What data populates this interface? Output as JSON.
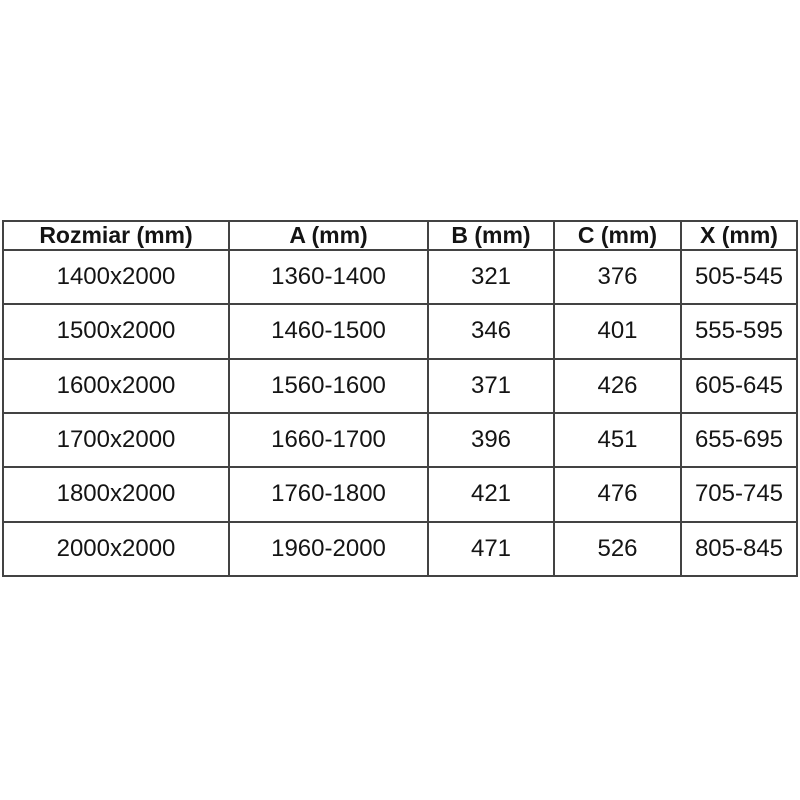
{
  "chart_data": {
    "type": "table",
    "title": "",
    "columns": [
      "Rozmiar (mm)",
      "A (mm)",
      "B (mm)",
      "C (mm)",
      "X (mm)"
    ],
    "rows": [
      [
        "1400x2000",
        "1360-1400",
        "321",
        "376",
        "505-545"
      ],
      [
        "1500x2000",
        "1460-1500",
        "346",
        "401",
        "555-595"
      ],
      [
        "1600x2000",
        "1560-1600",
        "371",
        "426",
        "605-645"
      ],
      [
        "1700x2000",
        "1660-1700",
        "396",
        "451",
        "655-695"
      ],
      [
        "1800x2000",
        "1760-1800",
        "421",
        "476",
        "705-745"
      ],
      [
        "2000x2000",
        "1960-2000",
        "471",
        "526",
        "805-845"
      ]
    ],
    "layout": {
      "header_bold": true,
      "grid": "all-borders",
      "cell_alignment": "center"
    }
  },
  "colors": {
    "background": "#ffffff",
    "border": "#434343",
    "text": "#141414"
  }
}
